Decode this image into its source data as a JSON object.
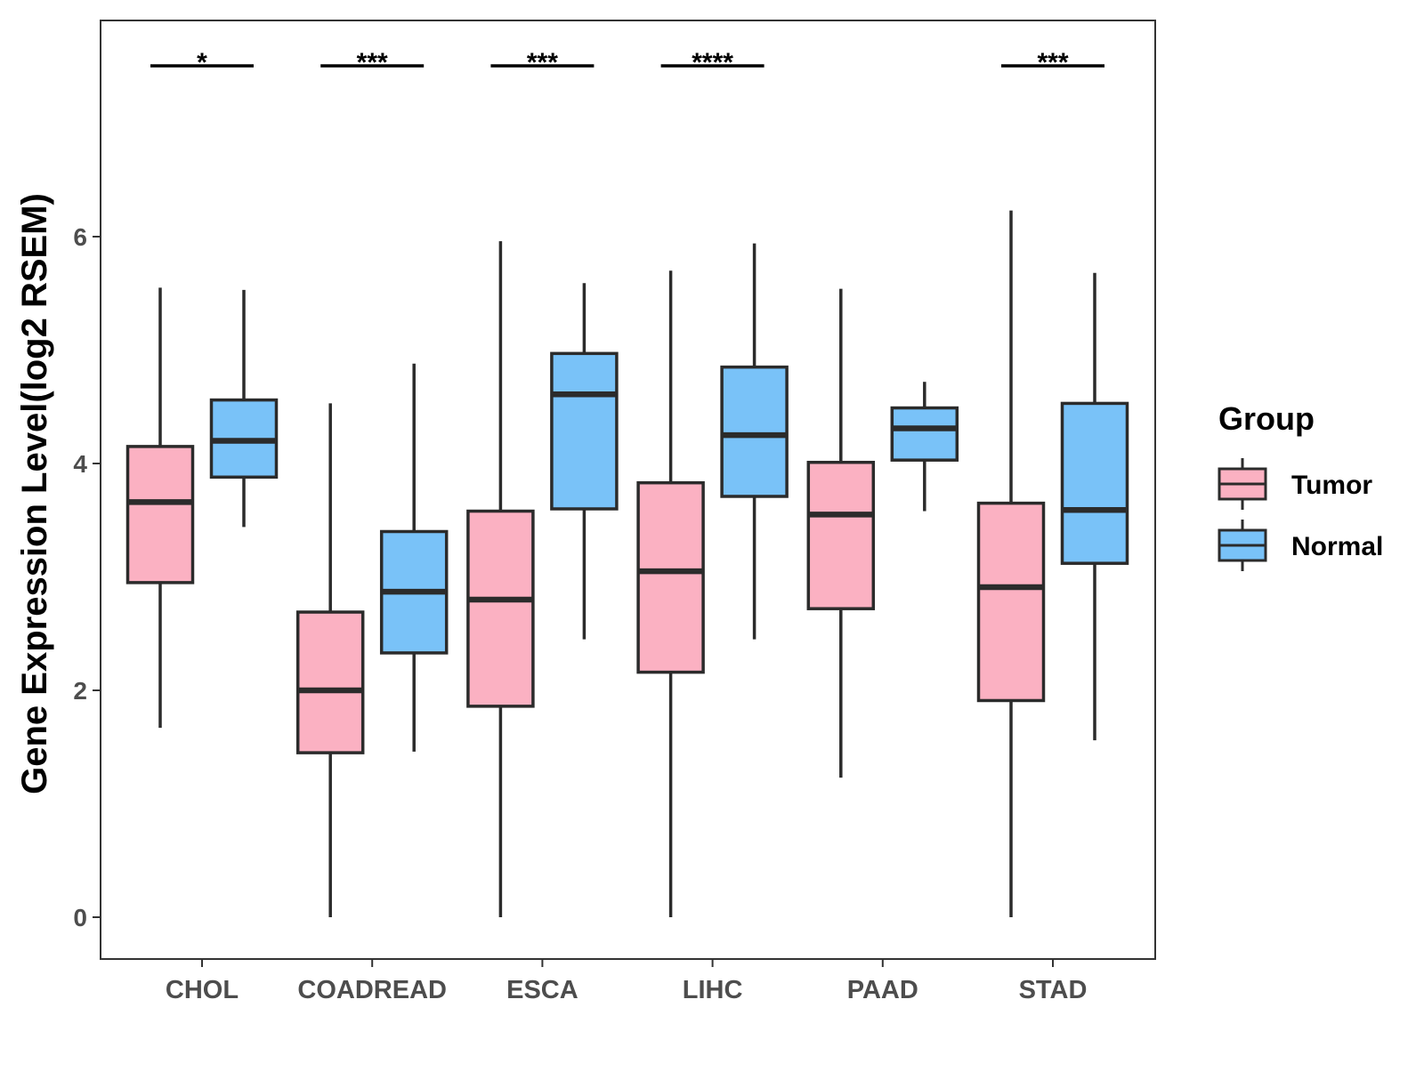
{
  "chart_data": {
    "type": "boxplot",
    "title": "",
    "xlabel": "",
    "ylabel": "Gene Expression Level(log2 RSEM)",
    "ylim": [
      -0.7,
      7.8
    ],
    "yticks": [
      0,
      2,
      4,
      6
    ],
    "ytick_labels": [
      "0",
      "2",
      "4",
      "6"
    ],
    "grid": false,
    "categories": [
      "CHOL",
      "COADREAD",
      "ESCA",
      "LIHC",
      "PAAD",
      "STAD"
    ],
    "legend": {
      "title": "Group",
      "placement": "right",
      "entries": [
        "Tumor",
        "Normal"
      ]
    },
    "colors": {
      "Tumor": "#fbb1c2",
      "Normal": "#79c2f8",
      "stroke": "#2b2b2b",
      "axis_text": "#4d4d4d"
    },
    "series": [
      {
        "name": "Tumor",
        "boxes": [
          {
            "category": "CHOL",
            "whisker_low": 1.67,
            "q1": 2.95,
            "median": 3.66,
            "q3": 4.15,
            "whisker_high": 5.55
          },
          {
            "category": "COADREAD",
            "whisker_low": 0.0,
            "q1": 1.45,
            "median": 2.0,
            "q3": 2.69,
            "whisker_high": 4.53
          },
          {
            "category": "ESCA",
            "whisker_low": 0.0,
            "q1": 1.86,
            "median": 2.8,
            "q3": 3.58,
            "whisker_high": 5.96
          },
          {
            "category": "LIHC",
            "whisker_low": 0.0,
            "q1": 2.16,
            "median": 3.05,
            "q3": 3.83,
            "whisker_high": 5.7
          },
          {
            "category": "PAAD",
            "whisker_low": 1.23,
            "q1": 2.72,
            "median": 3.55,
            "q3": 4.01,
            "whisker_high": 5.54
          },
          {
            "category": "STAD",
            "whisker_low": 0.0,
            "q1": 1.91,
            "median": 2.91,
            "q3": 3.65,
            "whisker_high": 6.23
          }
        ]
      },
      {
        "name": "Normal",
        "boxes": [
          {
            "category": "CHOL",
            "whisker_low": 3.44,
            "q1": 3.88,
            "median": 4.2,
            "q3": 4.56,
            "whisker_high": 5.53
          },
          {
            "category": "COADREAD",
            "whisker_low": 1.46,
            "q1": 2.33,
            "median": 2.87,
            "q3": 3.4,
            "whisker_high": 4.88
          },
          {
            "category": "ESCA",
            "whisker_low": 2.45,
            "q1": 3.6,
            "median": 4.61,
            "q3": 4.97,
            "whisker_high": 5.59
          },
          {
            "category": "LIHC",
            "whisker_low": 2.45,
            "q1": 3.71,
            "median": 4.25,
            "q3": 4.85,
            "whisker_high": 5.94
          },
          {
            "category": "PAAD",
            "whisker_low": 3.58,
            "q1": 4.03,
            "median": 4.31,
            "q3": 4.49,
            "whisker_high": 4.72
          },
          {
            "category": "STAD",
            "whisker_low": 1.56,
            "q1": 3.12,
            "median": 3.59,
            "q3": 4.53,
            "whisker_high": 5.68
          }
        ]
      }
    ],
    "annotations": [
      {
        "category": "CHOL",
        "label": "*"
      },
      {
        "category": "COADREAD",
        "label": "***"
      },
      {
        "category": "ESCA",
        "label": "***"
      },
      {
        "category": "LIHC",
        "label": "****"
      },
      {
        "category": "STAD",
        "label": "***"
      }
    ]
  }
}
